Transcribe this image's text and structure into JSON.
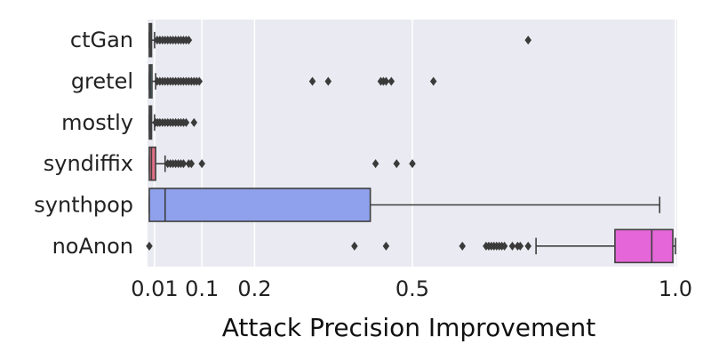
{
  "chart_data": {
    "type": "box",
    "orientation": "horizontal",
    "xlabel": "Attack Precision Improvement",
    "xlim": [
      0,
      1.0
    ],
    "xticks": [
      {
        "value": 0.01,
        "label": "0.01"
      },
      {
        "value": 0.1,
        "label": "0.1"
      },
      {
        "value": 0.2,
        "label": "0.2"
      },
      {
        "value": 0.5,
        "label": "0.5"
      },
      {
        "value": 1.0,
        "label": "1.0"
      }
    ],
    "grid": true,
    "categories": [
      "ctGan",
      "gretel",
      "mostly",
      "syndiffix",
      "synthpop",
      "noAnon"
    ],
    "series": [
      {
        "category": "ctGan",
        "color": "#b9c07a",
        "q1": 0.0,
        "median": 0.002,
        "q3": 0.004,
        "whisker_low": 0.0,
        "whisker_high": 0.01,
        "outliers": [
          0.015,
          0.02,
          0.025,
          0.03,
          0.035,
          0.04,
          0.045,
          0.05,
          0.055,
          0.06,
          0.065,
          0.07,
          0.075,
          0.72
        ]
      },
      {
        "category": "gretel",
        "color": "#4fc3b0",
        "q1": 0.0,
        "median": 0.002,
        "q3": 0.005,
        "whisker_low": 0.0,
        "whisker_high": 0.012,
        "outliers": [
          0.015,
          0.02,
          0.025,
          0.03,
          0.035,
          0.04,
          0.045,
          0.05,
          0.055,
          0.06,
          0.065,
          0.07,
          0.075,
          0.08,
          0.085,
          0.09,
          0.095,
          0.31,
          0.34,
          0.44,
          0.445,
          0.45,
          0.46,
          0.54
        ]
      },
      {
        "category": "mostly",
        "color": "#3aa0a8",
        "q1": 0.0,
        "median": 0.002,
        "q3": 0.004,
        "whisker_low": 0.0,
        "whisker_high": 0.01,
        "outliers": [
          0.012,
          0.016,
          0.02,
          0.025,
          0.03,
          0.035,
          0.04,
          0.045,
          0.05,
          0.055,
          0.06,
          0.065,
          0.07,
          0.085
        ]
      },
      {
        "category": "syndiffix",
        "color": "#e06f88",
        "q1": 0.0,
        "median": 0.004,
        "q3": 0.012,
        "whisker_low": 0.0,
        "whisker_high": 0.03,
        "outliers": [
          0.035,
          0.04,
          0.045,
          0.05,
          0.055,
          0.06,
          0.065,
          0.075,
          0.08,
          0.1,
          0.43,
          0.47,
          0.5
        ]
      },
      {
        "category": "synthpop",
        "color": "#8fa1ec",
        "q1": 0.0,
        "median": 0.03,
        "q3": 0.42,
        "whisker_low": 0.0,
        "whisker_high": 0.97,
        "outliers": []
      },
      {
        "category": "noAnon",
        "color": "#e566d8",
        "q1": 0.885,
        "median": 0.955,
        "q3": 0.995,
        "whisker_low": 0.735,
        "whisker_high": 1.0,
        "outliers": [
          0.0,
          0.39,
          0.45,
          0.595,
          0.64,
          0.645,
          0.65,
          0.655,
          0.66,
          0.665,
          0.67,
          0.675,
          0.69,
          0.7,
          0.705,
          0.72
        ]
      }
    ]
  }
}
